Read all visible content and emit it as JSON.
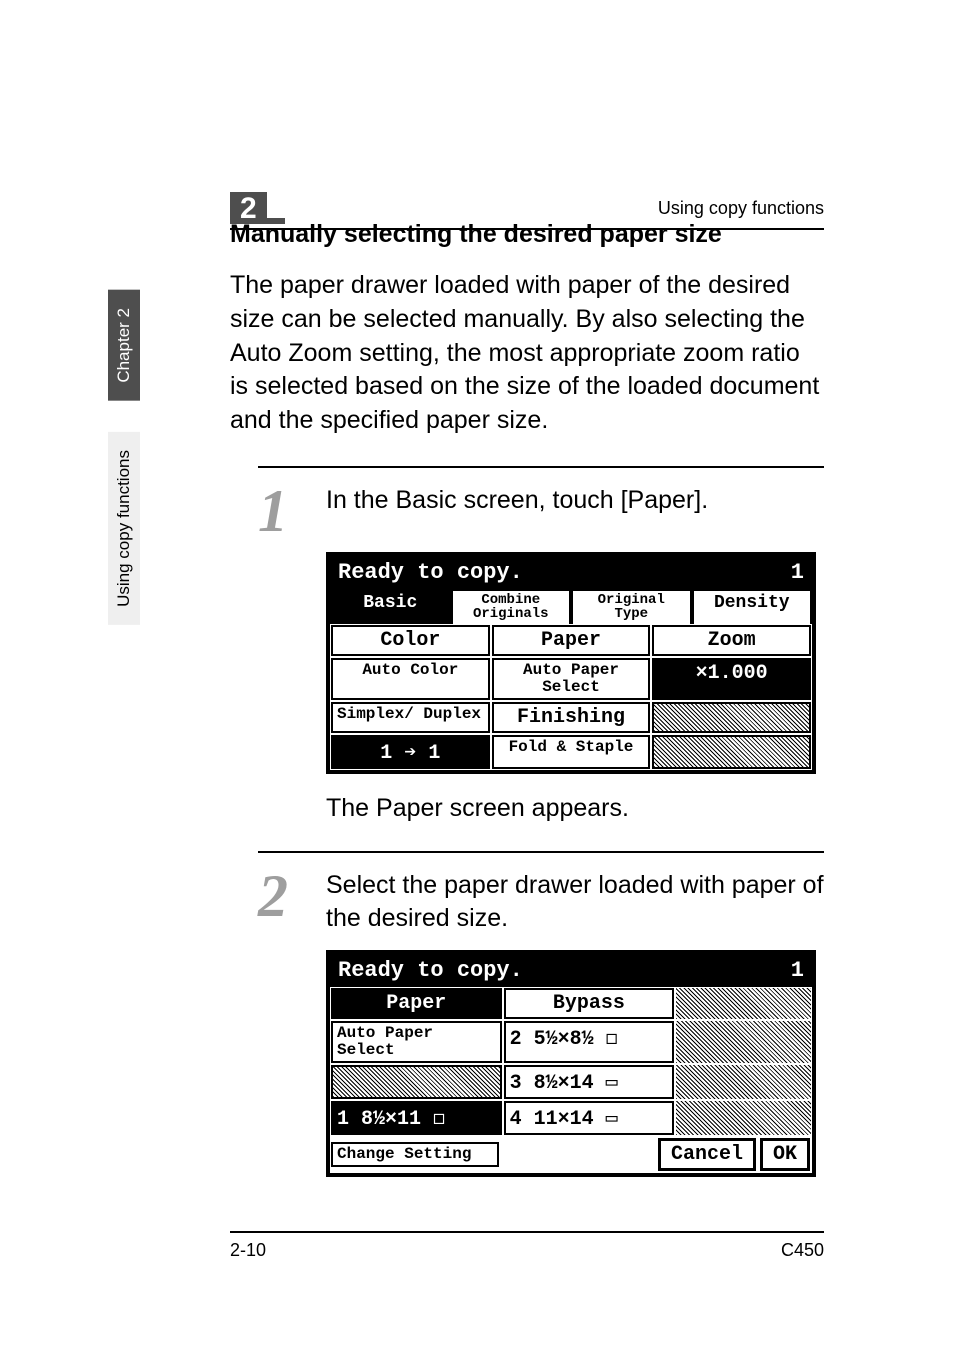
{
  "running_header": "Using copy functions",
  "chapter_marker": "2",
  "side_tabs": {
    "dark": "Chapter 2",
    "light": "Using copy functions"
  },
  "section_title": "Manually selecting the desired paper size",
  "intro": "The paper drawer loaded with paper of the desired size can be selected manually. By also selecting the Auto Zoom setting, the most appropriate zoom ratio is selected based on the size of the loaded document and the specified paper size.",
  "steps": [
    {
      "num": "1",
      "text": "In the Basic screen, touch [Paper].",
      "after_note": "The Paper screen appears."
    },
    {
      "num": "2",
      "text": "Select the paper drawer loaded with paper of the desired size.",
      "after_note": ""
    }
  ],
  "lcd1": {
    "status": "Ready to copy.",
    "status_count": "1",
    "tabs": [
      "Basic",
      "Combine\nOriginals",
      "Original\nType",
      "Density"
    ],
    "active_tab_index": 0,
    "row1_headers": [
      "Color",
      "Paper",
      "Zoom"
    ],
    "row1_values": [
      "Auto\nColor",
      "Auto Paper\nSelect",
      "×1.000"
    ],
    "row1_value_inverted_index": 2,
    "row2_left": "Simplex/\nDuplex",
    "row2_mid": "Finishing",
    "row3_left": "1 ➔ 1",
    "row3_mid": "Fold &\nStaple"
  },
  "lcd2": {
    "status": "Ready to copy.",
    "status_count": "1",
    "header_left": "Paper",
    "header_right": "Bypass",
    "left_col": [
      "Auto Paper\nSelect",
      "",
      "1  8½×11 ◻",
      "Change\nSetting"
    ],
    "left_col_inverted_index": 2,
    "right_col": [
      "2  5½×8½ ◻",
      "3  8½×14 ▭",
      "4  11×14 ▭"
    ],
    "footer_buttons": [
      "Cancel",
      "OK"
    ]
  },
  "footer": {
    "left": "2-10",
    "right": "C450"
  },
  "colors": {
    "dark_tab": "#4e4e4e",
    "step_num": "#9e9e9e"
  }
}
